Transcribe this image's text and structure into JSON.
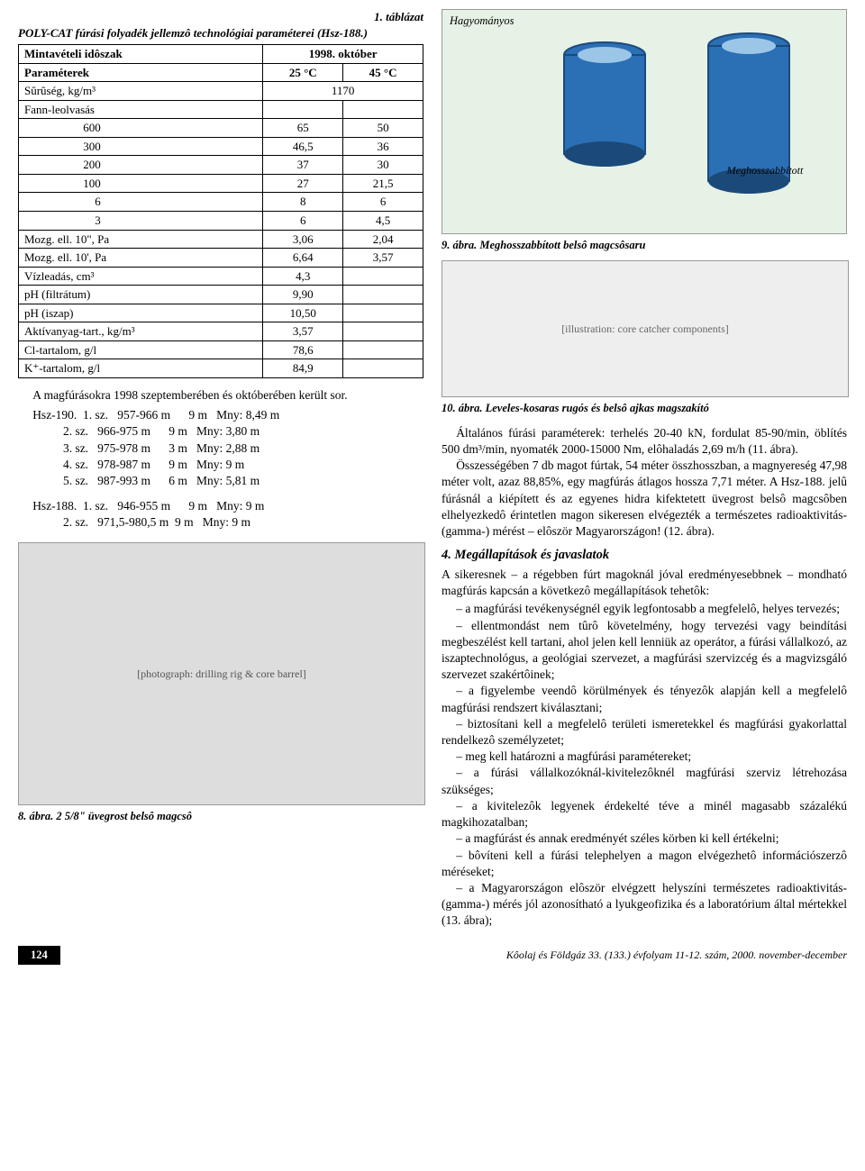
{
  "table": {
    "number": "1. táblázat",
    "caption": "POLY-CAT fúrási folyadék jellemzô technológiai paraméterei (Hsz-188.)",
    "period_label": "Mintavételi idôszak",
    "period_value": "1998. október",
    "param_label": "Paraméterek",
    "col25": "25 °C",
    "col45": "45 °C",
    "rows": [
      {
        "p": "Sûrûség, kg/m³",
        "a": "1170",
        "b": ""
      },
      {
        "p": "Fann-leolvasás",
        "a": "",
        "b": ""
      },
      {
        "p": "600",
        "a": "65",
        "b": "50"
      },
      {
        "p": "300",
        "a": "46,5",
        "b": "36"
      },
      {
        "p": "200",
        "a": "37",
        "b": "30"
      },
      {
        "p": "100",
        "a": "27",
        "b": "21,5"
      },
      {
        "p": "6",
        "a": "8",
        "b": "6"
      },
      {
        "p": "3",
        "a": "6",
        "b": "4,5"
      },
      {
        "p": "Mozg. ell. 10\", Pa",
        "a": "3,06",
        "b": "2,04"
      },
      {
        "p": "Mozg. ell. 10', Pa",
        "a": "6,64",
        "b": "3,57"
      },
      {
        "p": "Vízleadás, cm³",
        "a": "4,3",
        "b": ""
      },
      {
        "p": "pH (filtrátum)",
        "a": "9,90",
        "b": ""
      },
      {
        "p": "pH (iszap)",
        "a": "10,50",
        "b": ""
      },
      {
        "p": "Aktívanyag-tart., kg/m³",
        "a": "3,57",
        "b": ""
      },
      {
        "p": "Cl-tartalom, g/l",
        "a": "78,6",
        "b": ""
      },
      {
        "p": "K⁺-tartalom, g/l",
        "a": "84,9",
        "b": ""
      }
    ],
    "indent_rows": [
      2,
      3,
      4,
      5,
      6,
      7
    ]
  },
  "para1": "A magfúrásokra 1998 szeptemberében és októberében került sor.",
  "drill_hsz190": [
    "Hsz-190.  1. sz.   957-966 m      9 m   Mny: 8,49 m",
    "          2. sz.   966-975 m      9 m   Mny: 3,80 m",
    "          3. sz.   975-978 m      3 m   Mny: 2,88 m",
    "          4. sz.   978-987 m      9 m   Mny: 9 m",
    "          5. sz.   987-993 m      6 m   Mny: 5,81 m"
  ],
  "drill_hsz188": [
    "Hsz-188.  1. sz.   946-955 m      9 m   Mny: 9 m",
    "          2. sz.   971,5-980,5 m  9 m   Mny: 9 m"
  ],
  "fig8_caption": "8. ábra. 2 5/8\" üvegrost belsô magcsô",
  "fig8_placeholder": "[photograph: drilling rig & core barrel]",
  "fig9_top_label": "Hagyományos",
  "fig9_mid_label": "Meghosszabbított",
  "fig9_caption": "9. ábra. Meghosszabbított belsô magcsôsaru",
  "fig10_caption": "10. ábra. Leveles-kosaras rugós és belsô ajkas magszakító",
  "fig10_placeholder": "[illustration: core catcher components]",
  "para2": "Általános fúrási paraméterek: terhelés 20-40 kN, fordulat 85-90/min, öblítés 500 dm³/min, nyomaték 2000-15000 Nm, elôhaladás 2,69 m/h (11. ábra).",
  "para3": "Összességében 7 db magot fúrtak, 54 méter összhosszban, a magnyereség 47,98 méter volt, azaz 88,85%, egy magfúrás átlagos hossza 7,71 méter. A Hsz-188. jelû fúrásnál a kiépített és az egyenes hidra kifektetett üvegrost belsô magcsôben elhelyezkedô érintetlen magon sikeresen elvégezték a természetes radioaktivitás- (gamma-) mérést – elôször Magyarországon! (12. ábra).",
  "section_title": "4. Megállapítások és javaslatok",
  "para4": "A sikeresnek – a régebben fúrt magoknál jóval eredményesebbnek – mondható magfúrás kapcsán a következô megállapítások tehetôk:",
  "findings": [
    "– a magfúrási tevékenységnél egyik legfontosabb a megfelelô, helyes tervezés;",
    "– ellentmondást nem tûrô követelmény, hogy tervezési vagy beindítási megbeszélést kell tartani, ahol jelen kell lenniük az operátor, a fúrási vállalkozó, az iszaptechnológus, a geológiai szervezet, a magfúrási szervizcég és a magvizsgáló szervezet szakértôinek;",
    "– a figyelembe veendô körülmények és tényezôk alapján kell a megfelelô magfúrási rendszert kiválasztani;",
    "– biztosítani kell a megfelelô területi ismeretekkel és magfúrási gyakorlattal rendelkezô személyzetet;",
    "– meg kell határozni a magfúrási paramétereket;",
    "– a fúrási vállalkozóknál-kivitelezôknél magfúrási szerviz létrehozása szükséges;",
    "– a kivitelezôk legyenek érdekelté téve a minél magasabb százalékú magkihozatalban;",
    "– a magfúrást és annak eredményét széles körben ki kell értékelni;",
    "– bôvíteni kell a fúrási telephelyen a magon elvégezhetô információszerzô méréseket;",
    "– a Magyarországon elôször elvégzett helyszíni természetes radioaktivitás- (gamma-) mérés jól azonosítható a lyukgeofizika és a laboratórium által mértekkel (13. ábra);"
  ],
  "footer": {
    "page": "124",
    "text": "Kôolaj és Földgáz 33. (133.) évfolyam 11-12. szám, 2000. november-december"
  },
  "colors": {
    "fig9_bg": "#e6f2e6",
    "cylinder_fill": "#2b6fb5",
    "cylinder_shadow": "#1b4a7a",
    "grey_fig_bg": "#eeeeee"
  }
}
